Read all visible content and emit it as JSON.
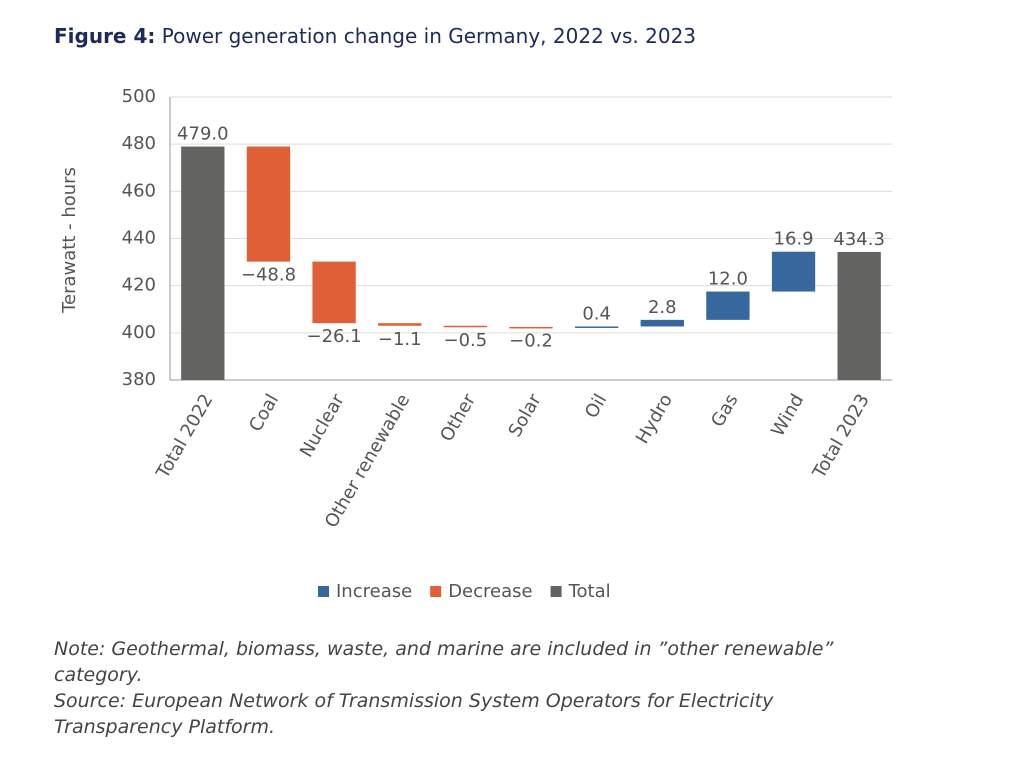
{
  "chart_data": {
    "type": "waterfall",
    "title_prefix": "Figure 4:",
    "title": "Power generation change in Germany, 2022 vs. 2023",
    "ylabel": "Terawatt - hours",
    "categories": [
      "Total 2022",
      "Coal",
      "Nuclear",
      "Other renewable",
      "Other",
      "Solar",
      "Oil",
      "Hydro",
      "Gas",
      "Wind",
      "Total 2023"
    ],
    "values": [
      479.0,
      -48.8,
      -26.1,
      -1.1,
      -0.5,
      -0.2,
      0.4,
      2.8,
      12.0,
      16.9,
      434.3
    ],
    "value_labels": [
      "479.0",
      "−48.8",
      "−26.1",
      "−1.1",
      "−0.5",
      "−0.2",
      "0.4",
      "2.8",
      "12.0",
      "16.9",
      "434.3"
    ],
    "total_indices": [
      0,
      10
    ],
    "legend": [
      {
        "name": "Increase",
        "color": "#36679d"
      },
      {
        "name": "Decrease",
        "color": "#e15f37"
      },
      {
        "name": "Total",
        "color": "#636361"
      }
    ],
    "ylim": [
      380,
      500
    ],
    "yticks": [
      380,
      400,
      420,
      440,
      460,
      480,
      500
    ],
    "grid": true,
    "note": "Note: Geothermal, biomass, waste, and marine are included in ”other renewable” category.",
    "source": "Source: European Network of Transmission System Operators for Electricity Transparency Platform."
  }
}
